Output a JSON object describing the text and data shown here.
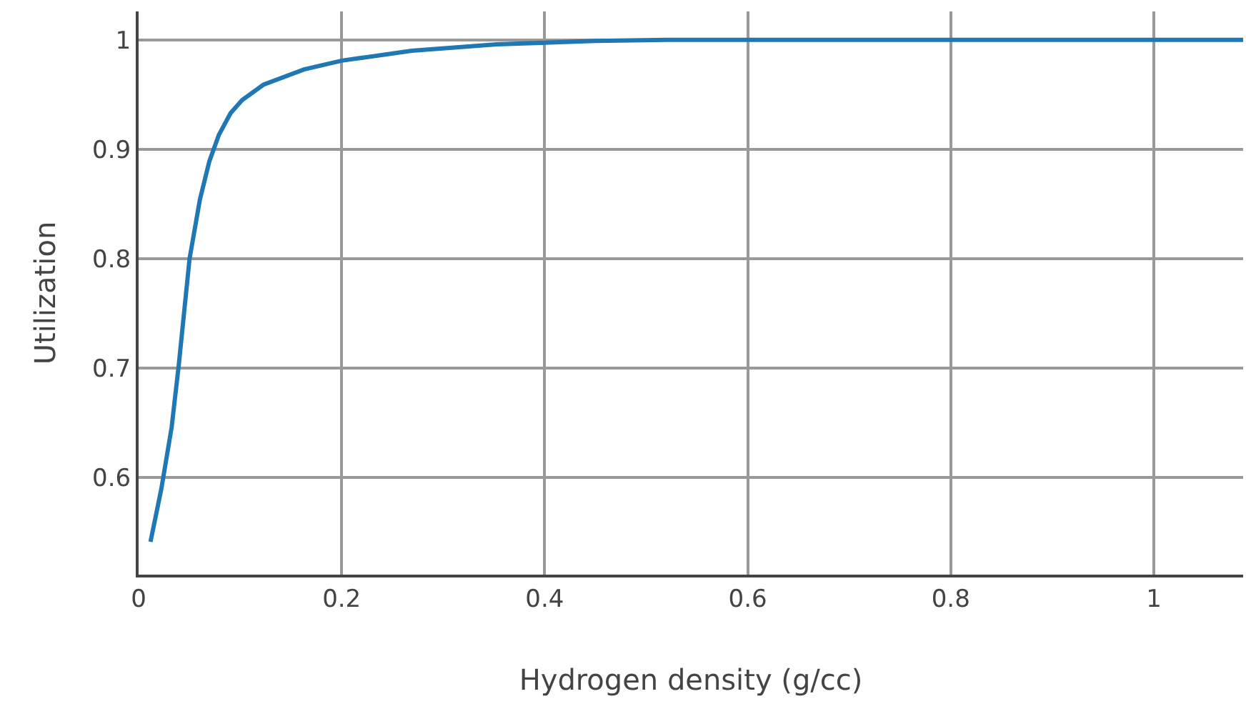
{
  "chart_data": {
    "type": "line",
    "xlabel": "Hydrogen density (g/cc)",
    "ylabel": "Utilization",
    "x": [
      0.0117,
      0.0223,
      0.0326,
      0.0396,
      0.0502,
      0.0604,
      0.0697,
      0.079,
      0.0906,
      0.102,
      0.123,
      0.163,
      0.2,
      0.269,
      0.353,
      0.45,
      0.52,
      0.7,
      0.9,
      1.088
    ],
    "series": [
      {
        "color": "#1f77b4",
        "values": [
          0.541,
          0.589,
          0.646,
          0.703,
          0.8,
          0.854,
          0.889,
          0.913,
          0.933,
          0.945,
          0.959,
          0.973,
          0.981,
          0.99,
          0.996,
          0.999,
          1.0,
          1.0,
          1.0,
          1.0
        ]
      }
    ],
    "xlim": [
      0,
      1.088
    ],
    "ylim": [
      0.511,
      1.026
    ],
    "xticks": [
      0,
      0.2,
      0.4,
      0.6,
      0.8,
      1
    ],
    "yticks": [
      0.6,
      0.7,
      0.8,
      0.9,
      1
    ],
    "grid": true,
    "marker": "none",
    "line_style": "solid"
  }
}
